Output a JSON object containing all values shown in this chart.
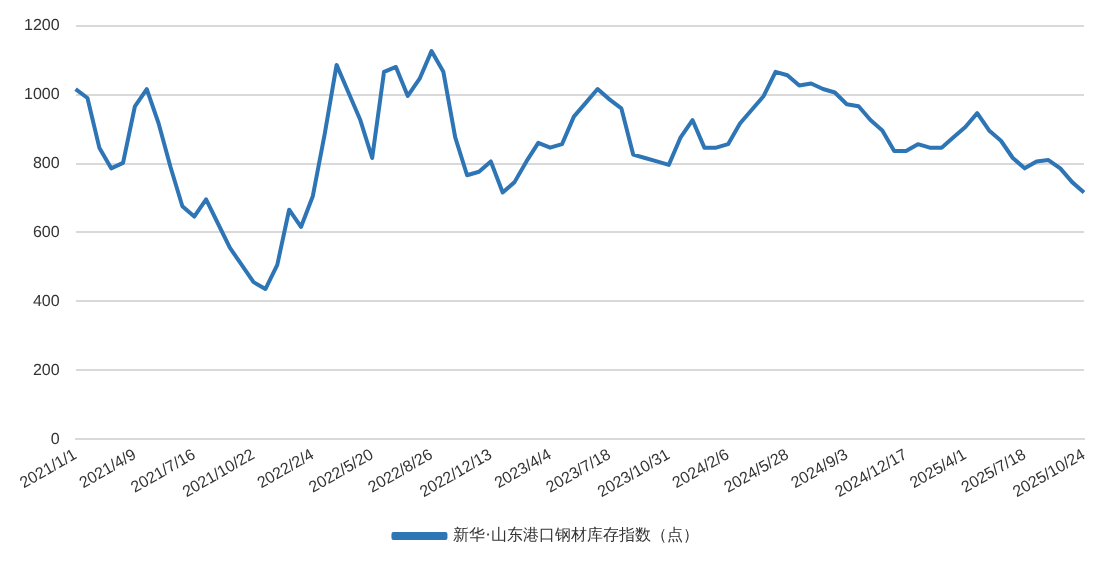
{
  "chart_data": {
    "type": "line",
    "categories": [
      "2021/1/1",
      null,
      null,
      null,
      null,
      "2021/4/9",
      null,
      null,
      null,
      null,
      "2021/7/16",
      null,
      null,
      null,
      null,
      "2021/10/22",
      null,
      null,
      null,
      null,
      "2022/2/4",
      null,
      null,
      null,
      null,
      "2022/5/20",
      null,
      null,
      null,
      null,
      "2022/8/26",
      null,
      null,
      null,
      null,
      "2022/12/13",
      null,
      null,
      null,
      null,
      "2023/4/4",
      null,
      null,
      null,
      null,
      "2023/7/18",
      null,
      null,
      null,
      null,
      "2023/10/31",
      null,
      null,
      null,
      null,
      "2024/2/6",
      null,
      null,
      null,
      null,
      "2024/5/28",
      null,
      null,
      null,
      null,
      "2024/9/3",
      null,
      null,
      null,
      null,
      "2024/12/17",
      null,
      null,
      null,
      null,
      "2025/4/1",
      null,
      null,
      null,
      null,
      "2025/7/18",
      null,
      null,
      null,
      null,
      "2025/10/24"
    ],
    "series": [
      {
        "name": "新华·山东港口钢材库存指数（点）",
        "color": "#2e75b6",
        "values": [
          1016,
          990,
          846,
          786,
          802,
          966,
          1016,
          916,
          790,
          676,
          646,
          696,
          626,
          556,
          506,
          456,
          436,
          506,
          666,
          616,
          706,
          886,
          1086,
          1006,
          926,
          816,
          1066,
          1080,
          996,
          1046,
          1126,
          1066,
          876,
          766,
          776,
          806,
          716,
          746,
          806,
          860,
          846,
          856,
          936,
          976,
          1016,
          986,
          960,
          826,
          816,
          806,
          796,
          876,
          926,
          846,
          846,
          856,
          916,
          956,
          996,
          1066,
          1056,
          1026,
          1032,
          1016,
          1006,
          972,
          966,
          926,
          896,
          836,
          836,
          856,
          846,
          846,
          876,
          906,
          946,
          896,
          866,
          816,
          786,
          806,
          810,
          786,
          746,
          716
        ]
      }
    ],
    "ylim": [
      0,
      1200
    ],
    "yticks": [
      0,
      200,
      400,
      600,
      800,
      1000,
      1200
    ],
    "grid": "y",
    "legend": "bottom",
    "marker": "none",
    "line_style": "solid"
  }
}
